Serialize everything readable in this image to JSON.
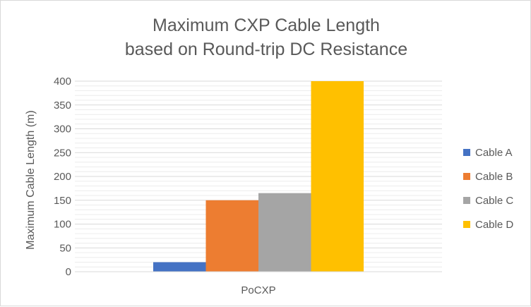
{
  "chart_data": {
    "type": "bar",
    "title": "Maximum CXP Cable Length",
    "subtitle": "based on Round-trip DC Resistance",
    "xlabel": "",
    "ylabel": "Maximum Cable Length (m)",
    "categories": [
      "PoCXP"
    ],
    "series": [
      {
        "name": "Cable A",
        "color": "#4472c4",
        "values": [
          20
        ]
      },
      {
        "name": "Cable B",
        "color": "#ed7d31",
        "values": [
          150
        ]
      },
      {
        "name": "Cable C",
        "color": "#a5a5a5",
        "values": [
          165
        ]
      },
      {
        "name": "Cable D",
        "color": "#ffc000",
        "values": [
          400
        ]
      }
    ],
    "ylim": [
      0,
      400
    ],
    "yticks": [
      "0",
      "50",
      "100",
      "150",
      "200",
      "250",
      "300",
      "350",
      "400"
    ],
    "grid": true,
    "legend_position": "right"
  }
}
